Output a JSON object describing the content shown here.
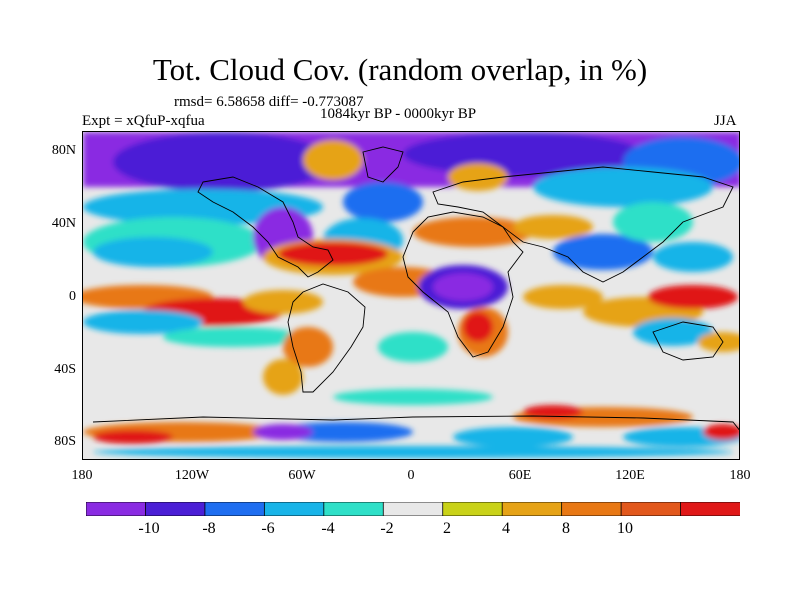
{
  "header": {
    "title": "Tot. Cloud Cov. (random overlap, in %)",
    "stats": "rmsd= 6.58658 diff= -0.773087",
    "period": "1084kyr BP - 0000kyr BP",
    "experiment": "Expt = xQfuP-xqfua",
    "season": "JJA"
  },
  "map": {
    "projection": "equirectangular",
    "lon_range": [
      -180,
      180
    ],
    "lat_range": [
      -90,
      90
    ],
    "y_axis_ticks": [
      "80N",
      "40N",
      "0",
      "40S",
      "80S"
    ],
    "x_axis_ticks": [
      "180",
      "120W",
      "60W",
      "0",
      "60E",
      "120E",
      "180"
    ]
  },
  "colorbar": {
    "labels": [
      "-10",
      "-8",
      "-6",
      "-4",
      "-2",
      "2",
      "4",
      "8",
      "10"
    ],
    "colors": [
      "#8a2be2",
      "#4b1fd6",
      "#1f6ef0",
      "#18b4e8",
      "#2fe0c8",
      "#e8e8e8",
      "#c9d218",
      "#e6a317",
      "#e87814",
      "#e2581c",
      "#e01818"
    ]
  }
}
